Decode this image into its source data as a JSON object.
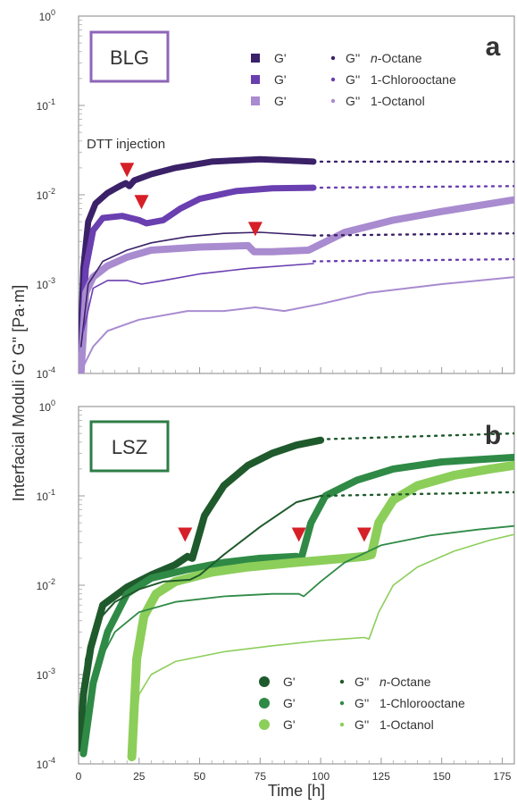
{
  "chart_data": [
    {
      "type": "line",
      "panel_letter": "a",
      "badge": "BLG",
      "badge_color": "#8e65b8",
      "y_scale": "log",
      "ylim": [
        0.0001,
        1
      ],
      "xlim": [
        0,
        180
      ],
      "xticks": [
        0,
        25,
        50,
        75,
        100,
        125,
        150,
        175
      ],
      "y_tick_labels": [
        {
          "base": "10",
          "exp": "0"
        },
        {
          "base": "10",
          "exp": "-1"
        },
        {
          "base": "10",
          "exp": "-2"
        },
        {
          "base": "10",
          "exp": "-3"
        },
        {
          "base": "10",
          "exp": "-4"
        }
      ],
      "annotation": "DTT injection",
      "injection_markers": [
        {
          "x": 20,
          "y": 0.0165
        },
        {
          "x": 26,
          "y": 0.0072
        },
        {
          "x": 73,
          "y": 0.0036
        }
      ],
      "legend": [
        {
          "gp": "G'",
          "gpp": "G''",
          "oil": "n-Octane",
          "oil_prefix": "n",
          "oil_rest": "-Octane",
          "color": "#3a2168"
        },
        {
          "gp": "G'",
          "gpp": "G''",
          "oil": "1-Chlorooctane",
          "oil_prefix": "",
          "oil_rest": "1-Chlorooctane",
          "color": "#6a3fb0"
        },
        {
          "gp": "G'",
          "gpp": "G''",
          "oil": "1-Octanol",
          "oil_prefix": "",
          "oil_rest": "1-Octanol",
          "color": "#a98bd0"
        }
      ],
      "series": [
        {
          "modulus": "G'",
          "oil": "n-Octane",
          "color": "#3a2168",
          "width": 7,
          "points": [
            [
              0.5,
              0.00012
            ],
            [
              2,
              0.0015
            ],
            [
              4,
              0.005
            ],
            [
              7,
              0.008
            ],
            [
              12,
              0.0105
            ],
            [
              17,
              0.0125
            ],
            [
              19.5,
              0.0135
            ],
            [
              21,
              0.0125
            ],
            [
              23,
              0.0145
            ],
            [
              30,
              0.017
            ],
            [
              40,
              0.02
            ],
            [
              55,
              0.0235
            ],
            [
              75,
              0.025
            ],
            [
              97,
              0.0235
            ]
          ],
          "dotted": [
            [
              97,
              0.0235
            ],
            [
              180,
              0.0235
            ]
          ]
        },
        {
          "modulus": "G'",
          "oil": "1-Chlorooctane",
          "color": "#6a3fb0",
          "width": 7,
          "points": [
            [
              1,
              0.00015
            ],
            [
              3,
              0.0015
            ],
            [
              6,
              0.004
            ],
            [
              10,
              0.0055
            ],
            [
              18,
              0.0058
            ],
            [
              25,
              0.0052
            ],
            [
              28,
              0.0048
            ],
            [
              35,
              0.0052
            ],
            [
              42,
              0.007
            ],
            [
              50,
              0.009
            ],
            [
              65,
              0.011
            ],
            [
              80,
              0.0118
            ],
            [
              97,
              0.012
            ]
          ],
          "dotted": [
            [
              97,
              0.012
            ],
            [
              180,
              0.0125
            ]
          ]
        },
        {
          "modulus": "G'",
          "oil": "1-Octanol",
          "color": "#a98bd0",
          "width": 8,
          "points": [
            [
              1,
              0.0001
            ],
            [
              3,
              0.0008
            ],
            [
              6,
              0.0012
            ],
            [
              12,
              0.0016
            ],
            [
              20,
              0.002
            ],
            [
              30,
              0.0024
            ],
            [
              50,
              0.0026
            ],
            [
              70,
              0.0027
            ],
            [
              72.5,
              0.0023
            ],
            [
              80,
              0.0023
            ],
            [
              95,
              0.0024
            ],
            [
              110,
              0.0038
            ],
            [
              130,
              0.0052
            ],
            [
              150,
              0.0065
            ],
            [
              180,
              0.0088
            ]
          ],
          "dotted": []
        },
        {
          "modulus": "G''",
          "oil": "n-Octane",
          "color": "#3a2168",
          "width": 1.6,
          "points": [
            [
              1,
              0.0002
            ],
            [
              4,
              0.001
            ],
            [
              10,
              0.0018
            ],
            [
              20,
              0.0024
            ],
            [
              30,
              0.0029
            ],
            [
              45,
              0.0034
            ],
            [
              60,
              0.0037
            ],
            [
              75,
              0.0038
            ],
            [
              97,
              0.0035
            ]
          ],
          "dotted": [
            [
              97,
              0.0035
            ],
            [
              180,
              0.0037
            ]
          ]
        },
        {
          "modulus": "G''",
          "oil": "1-Chlorooctane",
          "color": "#6a3fb0",
          "width": 1.6,
          "points": [
            [
              2,
              0.0003
            ],
            [
              6,
              0.0009
            ],
            [
              12,
              0.0011
            ],
            [
              20,
              0.0011
            ],
            [
              26,
              0.001
            ],
            [
              35,
              0.0011
            ],
            [
              50,
              0.0013
            ],
            [
              70,
              0.0015
            ],
            [
              97,
              0.0017
            ]
          ],
          "dotted": [
            [
              97,
              0.0018
            ],
            [
              180,
              0.0019
            ]
          ]
        },
        {
          "modulus": "G''",
          "oil": "1-Octanol",
          "color": "#a98bd0",
          "width": 2,
          "points": [
            [
              2,
              0.00012
            ],
            [
              6,
              0.0002
            ],
            [
              12,
              0.0003
            ],
            [
              25,
              0.0004
            ],
            [
              45,
              0.0005
            ],
            [
              60,
              0.0005
            ],
            [
              73,
              0.00055
            ],
            [
              85,
              0.0005
            ],
            [
              100,
              0.0006
            ],
            [
              120,
              0.0008
            ],
            [
              150,
              0.001
            ],
            [
              180,
              0.0012
            ]
          ],
          "dotted": []
        }
      ]
    },
    {
      "type": "line",
      "panel_letter": "b",
      "badge": "LSZ",
      "badge_color": "#2e7d46",
      "y_scale": "log",
      "ylim": [
        0.0001,
        1
      ],
      "xlim": [
        0,
        180
      ],
      "xticks": [
        0,
        25,
        50,
        75,
        100,
        125,
        150,
        175
      ],
      "x_tick_labels": [
        "0",
        "25",
        "50",
        "75",
        "100",
        "125",
        "150",
        "175"
      ],
      "y_tick_labels": [
        {
          "base": "10",
          "exp": "0"
        },
        {
          "base": "10",
          "exp": "-1"
        },
        {
          "base": "10",
          "exp": "-2"
        },
        {
          "base": "10",
          "exp": "-3"
        },
        {
          "base": "10",
          "exp": "-4"
        }
      ],
      "injection_markers": [
        {
          "x": 44,
          "y": 0.032
        },
        {
          "x": 91,
          "y": 0.032
        },
        {
          "x": 118,
          "y": 0.032
        }
      ],
      "legend": [
        {
          "gp": "G'",
          "gpp": "G''",
          "oil": "n-Octane",
          "oil_prefix": "n",
          "oil_rest": "-Octane",
          "color": "#1f5a2c"
        },
        {
          "gp": "G'",
          "gpp": "G''",
          "oil": "1-Chlorooctane",
          "oil_prefix": "",
          "oil_rest": "1-Chlorooctane",
          "color": "#2f8a46"
        },
        {
          "gp": "G'",
          "gpp": "G''",
          "oil": "1-Octanol",
          "oil_prefix": "",
          "oil_rest": "1-Octanol",
          "color": "#8cce5a"
        }
      ],
      "series": [
        {
          "modulus": "G'",
          "oil": "n-Octane",
          "color": "#1f5a2c",
          "width": 8,
          "points": [
            [
              0.5,
              0.00015
            ],
            [
              2,
              0.0006
            ],
            [
              5,
              0.002
            ],
            [
              10,
              0.006
            ],
            [
              20,
              0.0095
            ],
            [
              30,
              0.013
            ],
            [
              40,
              0.017
            ],
            [
              45,
              0.021
            ],
            [
              47,
              0.02
            ],
            [
              52,
              0.06
            ],
            [
              60,
              0.13
            ],
            [
              70,
              0.22
            ],
            [
              80,
              0.3
            ],
            [
              90,
              0.37
            ],
            [
              100,
              0.42
            ]
          ],
          "dotted": [
            [
              100,
              0.43
            ],
            [
              180,
              0.5
            ]
          ]
        },
        {
          "modulus": "G'",
          "oil": "1-Chlorooctane",
          "color": "#2f8a46",
          "width": 8,
          "points": [
            [
              2,
              0.00013
            ],
            [
              6,
              0.0008
            ],
            [
              12,
              0.003
            ],
            [
              20,
              0.008
            ],
            [
              30,
              0.012
            ],
            [
              45,
              0.015
            ],
            [
              60,
              0.018
            ],
            [
              75,
              0.02
            ],
            [
              90,
              0.021
            ],
            [
              92,
              0.02
            ],
            [
              96,
              0.05
            ],
            [
              102,
              0.1
            ],
            [
              115,
              0.15
            ],
            [
              130,
              0.2
            ],
            [
              150,
              0.24
            ],
            [
              180,
              0.27
            ]
          ],
          "dotted": []
        },
        {
          "modulus": "G'",
          "oil": "1-Octanol",
          "color": "#8cce5a",
          "width": 10,
          "points": [
            [
              22,
              0.00012
            ],
            [
              24,
              0.0015
            ],
            [
              27,
              0.0045
            ],
            [
              32,
              0.008
            ],
            [
              40,
              0.011
            ],
            [
              55,
              0.014
            ],
            [
              70,
              0.016
            ],
            [
              90,
              0.018
            ],
            [
              110,
              0.02
            ],
            [
              118,
              0.021
            ],
            [
              121,
              0.022
            ],
            [
              124,
              0.05
            ],
            [
              130,
              0.09
            ],
            [
              140,
              0.13
            ],
            [
              155,
              0.17
            ],
            [
              170,
              0.2
            ],
            [
              180,
              0.22
            ]
          ],
          "dotted": []
        },
        {
          "modulus": "G''",
          "oil": "n-Octane",
          "color": "#1f5a2c",
          "width": 2,
          "points": [
            [
              0.5,
              0.00025
            ],
            [
              3,
              0.0015
            ],
            [
              8,
              0.004
            ],
            [
              15,
              0.0065
            ],
            [
              25,
              0.009
            ],
            [
              35,
              0.011
            ],
            [
              46,
              0.0115
            ],
            [
              50,
              0.013
            ],
            [
              60,
              0.022
            ],
            [
              75,
              0.045
            ],
            [
              90,
              0.085
            ],
            [
              100,
              0.1
            ]
          ],
          "dotted": [
            [
              100,
              0.1
            ],
            [
              180,
              0.11
            ]
          ]
        },
        {
          "modulus": "G''",
          "oil": "1-Chlorooctane",
          "color": "#2f8a46",
          "width": 1.8,
          "points": [
            [
              3,
              0.00025
            ],
            [
              8,
              0.0013
            ],
            [
              15,
              0.003
            ],
            [
              25,
              0.005
            ],
            [
              40,
              0.0065
            ],
            [
              60,
              0.0075
            ],
            [
              80,
              0.008
            ],
            [
              91,
              0.008
            ],
            [
              93,
              0.0075
            ],
            [
              100,
              0.011
            ],
            [
              110,
              0.018
            ],
            [
              125,
              0.028
            ],
            [
              145,
              0.036
            ],
            [
              165,
              0.042
            ],
            [
              180,
              0.046
            ]
          ],
          "dotted": []
        },
        {
          "modulus": "G''",
          "oil": "1-Octanol",
          "color": "#8cce5a",
          "width": 1.6,
          "points": [
            [
              22,
              0.00013
            ],
            [
              25,
              0.0006
            ],
            [
              30,
              0.001
            ],
            [
              40,
              0.0014
            ],
            [
              60,
              0.0018
            ],
            [
              80,
              0.0021
            ],
            [
              100,
              0.0024
            ],
            [
              118,
              0.0026
            ],
            [
              120,
              0.0025
            ],
            [
              124,
              0.005
            ],
            [
              130,
              0.01
            ],
            [
              140,
              0.016
            ],
            [
              155,
              0.024
            ],
            [
              170,
              0.032
            ],
            [
              180,
              0.037
            ]
          ],
          "dotted": []
        }
      ]
    }
  ],
  "shared": {
    "ylabel": "Interfacial Moduli G' G'' [Pa·m]",
    "xlabel": "Time [h]",
    "marker_color": "#d61f26"
  }
}
